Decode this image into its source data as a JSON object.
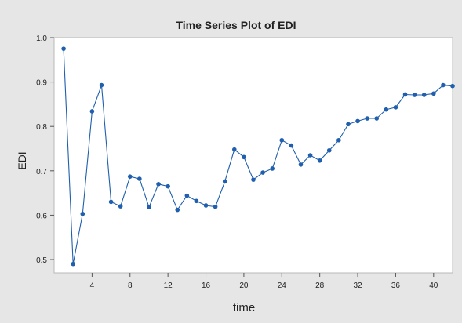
{
  "chart_data": {
    "type": "line",
    "title": "Time Series Plot of EDI",
    "xlabel": "time",
    "ylabel": "EDI",
    "xlim": [
      0,
      42
    ],
    "ylim": [
      0.47,
      1.0
    ],
    "x_ticks": [
      4,
      8,
      12,
      16,
      20,
      24,
      28,
      32,
      36,
      40
    ],
    "y_ticks": [
      0.5,
      0.6,
      0.7,
      0.8,
      0.9,
      1.0
    ],
    "y_tick_labels": [
      "0.5",
      "0.6",
      "0.7",
      "0.8",
      "0.9",
      "1.0"
    ],
    "grid": false,
    "colors": {
      "background": "#e6e6e6",
      "plot_area": "#ffffff",
      "series": "#1f5fae",
      "text": "#222222"
    },
    "series": [
      {
        "x": [
          1,
          2,
          3,
          4,
          5,
          6,
          7,
          8,
          9,
          10,
          11,
          12,
          13,
          14,
          15,
          16,
          17,
          18,
          19,
          20,
          21,
          22,
          23,
          24,
          25,
          26,
          27,
          28,
          29,
          30,
          31,
          32,
          33,
          34,
          35,
          36,
          37,
          38,
          39,
          40,
          41,
          42
        ],
        "values": [
          0.975,
          0.49,
          0.603,
          0.834,
          0.893,
          0.63,
          0.62,
          0.687,
          0.682,
          0.618,
          0.67,
          0.665,
          0.612,
          0.644,
          0.632,
          0.622,
          0.619,
          0.676,
          0.748,
          0.731,
          0.68,
          0.696,
          0.705,
          0.769,
          0.757,
          0.714,
          0.735,
          0.723,
          0.746,
          0.769,
          0.805,
          0.812,
          0.818,
          0.818,
          0.838,
          0.843,
          0.872,
          0.871,
          0.871,
          0.874,
          0.893,
          0.891
        ]
      }
    ]
  }
}
